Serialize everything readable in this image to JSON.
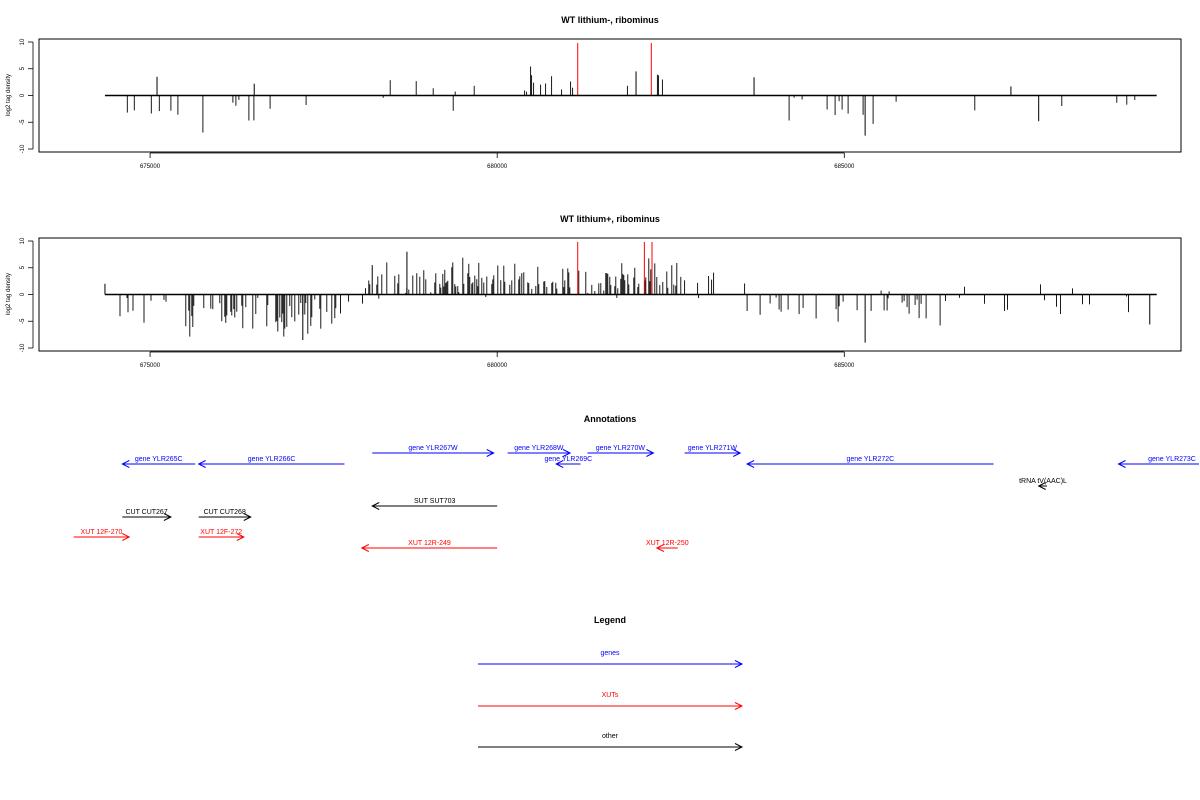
{
  "colors": {
    "genes": "#0000ff",
    "xuts": "#ff0000",
    "other": "#000000",
    "marker": "#ff0000"
  },
  "chart_data": [
    {
      "type": "bar",
      "title": "WT lithium-, ribominus",
      "ylabel": "log2 tag density",
      "ylim": [
        -10,
        10
      ],
      "xlim": [
        673400,
        689850
      ],
      "xticks": [
        675000,
        680000,
        685000
      ],
      "yticks": [
        10,
        5,
        0,
        -5,
        -10
      ],
      "grid": false,
      "markers": [
        681160,
        682220
      ],
      "seed": 11,
      "segments": [
        {
          "from": 674350,
          "to": 674600,
          "density": 0.02,
          "mean": -2.0,
          "spread": 1.0
        },
        {
          "from": 674600,
          "to": 675300,
          "density": 0.05,
          "mean": -2.0,
          "spread": 1.2
        },
        {
          "from": 675300,
          "to": 676700,
          "density": 0.1,
          "mean": -2.6,
          "spread": 1.6
        },
        {
          "from": 676700,
          "to": 677300,
          "density": 0.03,
          "mean": -2.0,
          "spread": 1.0
        },
        {
          "from": 677300,
          "to": 678300,
          "density": 0.02,
          "mean": 1.0,
          "spread": 1.5
        },
        {
          "from": 678300,
          "to": 680000,
          "density": 0.04,
          "mean": 1.0,
          "spread": 2.0
        },
        {
          "from": 680150,
          "to": 681300,
          "density": 0.14,
          "mean": 2.0,
          "spread": 1.2
        },
        {
          "from": 681300,
          "to": 682500,
          "density": 0.09,
          "mean": 1.8,
          "spread": 1.3
        },
        {
          "from": 682500,
          "to": 683700,
          "density": 0.02,
          "mean": 1.0,
          "spread": 0.6
        },
        {
          "from": 683700,
          "to": 685800,
          "density": 0.09,
          "mean": -2.4,
          "spread": 1.4
        },
        {
          "from": 685800,
          "to": 689500,
          "density": 0.02,
          "mean": -2.0,
          "spread": 1.0
        }
      ],
      "spikes": [
        [
          675100,
          3.5
        ],
        [
          676500,
          2.2
        ],
        [
          683700,
          3.4
        ],
        [
          685300,
          -7.5
        ],
        [
          687400,
          1.7
        ],
        [
          687800,
          -4.8
        ],
        [
          682000,
          4.5
        ]
      ]
    },
    {
      "type": "bar",
      "title": "WT lithium+, ribominus",
      "ylabel": "log2 tag density",
      "ylim": [
        -10,
        10
      ],
      "xlim": [
        673400,
        689850
      ],
      "xticks": [
        675000,
        680000,
        685000
      ],
      "yticks": [
        10,
        5,
        0,
        -5,
        -10
      ],
      "grid": false,
      "markers": [
        681160,
        682120,
        682230
      ],
      "seed": 29,
      "segments": [
        {
          "from": 674350,
          "to": 675500,
          "density": 0.1,
          "mean": -2.5,
          "spread": 1.4
        },
        {
          "from": 675500,
          "to": 677700,
          "density": 0.42,
          "mean": -3.8,
          "spread": 1.8
        },
        {
          "from": 677700,
          "to": 678150,
          "density": 0.1,
          "mean": -1.5,
          "spread": 1.5
        },
        {
          "from": 678150,
          "to": 682700,
          "density": 0.42,
          "mean": 3.0,
          "spread": 1.6
        },
        {
          "from": 682700,
          "to": 683600,
          "density": 0.12,
          "mean": 1.2,
          "spread": 1.5
        },
        {
          "from": 683600,
          "to": 686400,
          "density": 0.22,
          "mean": -2.4,
          "spread": 1.5
        },
        {
          "from": 686400,
          "to": 689500,
          "density": 0.08,
          "mean": -1.2,
          "spread": 1.6
        }
      ],
      "spikes": [
        [
          678200,
          5.5
        ],
        [
          678700,
          8.0
        ],
        [
          685300,
          -9.0
        ],
        [
          677200,
          -8.5
        ],
        [
          689400,
          -5.6
        ],
        [
          674350,
          2.0
        ]
      ]
    }
  ],
  "annotations": {
    "title": "Annotations",
    "features": [
      {
        "label": "gene YLR265C",
        "start": 674600,
        "end": 675650,
        "dir": "left",
        "kind": "genes",
        "row": 1
      },
      {
        "label": "gene YLR266C",
        "start": 675700,
        "end": 677800,
        "dir": "left",
        "kind": "genes",
        "row": 1
      },
      {
        "label": "gene YLR267W",
        "start": 678200,
        "end": 679950,
        "dir": "right",
        "kind": "genes",
        "row": 0
      },
      {
        "label": "gene YLR268W",
        "start": 680150,
        "end": 681050,
        "dir": "right",
        "kind": "genes",
        "row": 0
      },
      {
        "label": "gene YLR269C",
        "start": 680850,
        "end": 681200,
        "dir": "left",
        "kind": "genes",
        "row": 1
      },
      {
        "label": "gene YLR270W",
        "start": 681300,
        "end": 682250,
        "dir": "right",
        "kind": "genes",
        "row": 0
      },
      {
        "label": "gene YLR271W",
        "start": 682700,
        "end": 683500,
        "dir": "right",
        "kind": "genes",
        "row": 0
      },
      {
        "label": "gene YLR272C",
        "start": 683600,
        "end": 687150,
        "dir": "left",
        "kind": "genes",
        "row": 1
      },
      {
        "label": "gene YLR273C",
        "start": 688950,
        "end": 690200,
        "dir": "left",
        "kind": "genes",
        "row": 1
      },
      {
        "label": "tRNA tV(AAC)L",
        "start": 687800,
        "end": 687920,
        "dir": "left",
        "kind": "other",
        "row": 2
      },
      {
        "label": "SUT SUT703",
        "start": 678200,
        "end": 680000,
        "dir": "left",
        "kind": "other",
        "row": 3
      },
      {
        "label": "CUT CUT267",
        "start": 674600,
        "end": 675300,
        "dir": "right",
        "kind": "other",
        "row": 4
      },
      {
        "label": "CUT CUT268",
        "start": 675700,
        "end": 676450,
        "dir": "right",
        "kind": "other",
        "row": 4
      },
      {
        "label": "XUT 12F-270",
        "start": 673900,
        "end": 674700,
        "dir": "right",
        "kind": "xuts",
        "row": 5
      },
      {
        "label": "XUT 12F-272",
        "start": 675700,
        "end": 676350,
        "dir": "right",
        "kind": "xuts",
        "row": 5
      },
      {
        "label": "XUT 12R-249",
        "start": 678050,
        "end": 680000,
        "dir": "left",
        "kind": "xuts",
        "row": 6
      },
      {
        "label": "XUT 12R-250",
        "start": 682300,
        "end": 682600,
        "dir": "left",
        "kind": "xuts",
        "row": 6
      }
    ]
  },
  "legend": {
    "title": "Legend",
    "items": [
      {
        "label": "genes",
        "kind": "genes"
      },
      {
        "label": "XUTs",
        "kind": "xuts"
      },
      {
        "label": "other",
        "kind": "other"
      }
    ]
  }
}
